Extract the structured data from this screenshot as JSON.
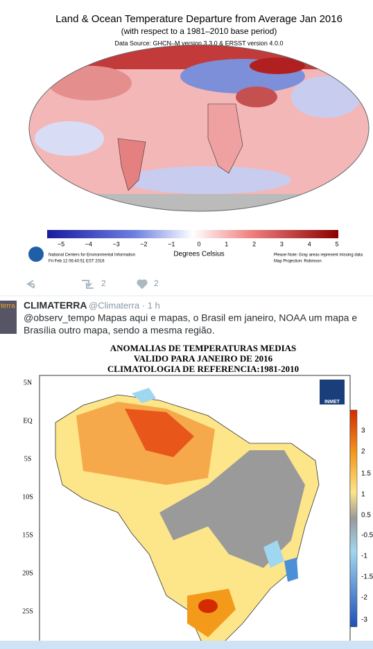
{
  "tweet1": {
    "map": {
      "title": "Land & Ocean Temperature Departure from Average Jan 2016",
      "subtitle": "(with respect to a 1981–2010 base period)",
      "source": "Data Source: GHCN–M version 3.3.0 & ERSST version 4.0.0",
      "colorbar_labels": [
        "−5",
        "−4",
        "−3",
        "−2",
        "−1",
        "0",
        "1",
        "2",
        "3",
        "4",
        "5"
      ],
      "colorbar_title": "Degrees Celsius",
      "credit": [
        "National Centers for Environmental Information",
        "Fri Feb 12 06:40:51 EST 2016"
      ],
      "notes": [
        "Please Note: Gray areas represent missing data",
        "Map Projection: Robinson"
      ]
    },
    "retweets": "2",
    "likes": "2"
  },
  "tweet2": {
    "avatar_text": "terra",
    "name": "CLIMATERRA",
    "handle": "@Climaterra · 1 h",
    "text_lines": [
      "@observ_tempo Mapas aqui e mapas, o Brasil em janeiro, NOAA um mapa e",
      "Brasília outro mapa, sendo a mesma região."
    ],
    "map": {
      "title_lines": [
        "ANOMALIAS DE TEMPERATURAS MEDIAS",
        "VALIDO PARA JANEIRO DE 2016",
        "CLIMATOLOGIA DE REFERENCIA:1981-2010"
      ],
      "lat_labels": [
        "5N",
        "EQ",
        "5S",
        "10S",
        "15S",
        "20S",
        "25S"
      ],
      "logo": "INMET",
      "colorbar_labels": [
        "3",
        "2",
        "1.5",
        "1",
        "0.5",
        "-0.5",
        "-1",
        "-1.5",
        "-2",
        "-3"
      ]
    }
  }
}
